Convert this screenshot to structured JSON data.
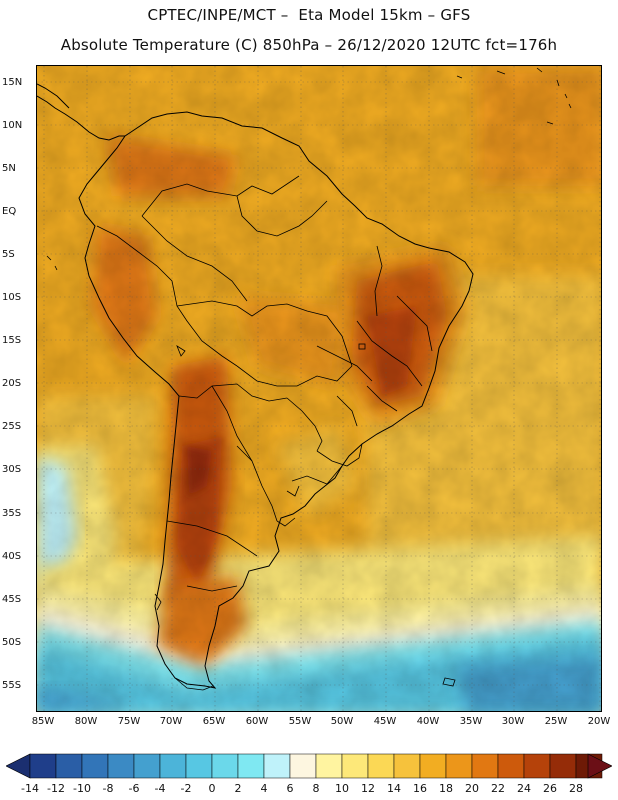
{
  "title": {
    "line1": "CPTEC/INPE/MCT –  Eta Model 15km – GFS",
    "line2": "Absolute Temperature (C) 850hPa – 26/12/2020 12UTC fct=176h"
  },
  "map": {
    "lat_labels": [
      "15N",
      "10N",
      "5N",
      "EQ",
      "5S",
      "10S",
      "15S",
      "20S",
      "25S",
      "30S",
      "35S",
      "40S",
      "45S",
      "50S",
      "55S"
    ],
    "lon_labels": [
      "85W",
      "80W",
      "75W",
      "70W",
      "65W",
      "60W",
      "55W",
      "50W",
      "45W",
      "40W",
      "35W",
      "30W",
      "25W",
      "20W"
    ],
    "gridlines": "dotted"
  },
  "colorbar": {
    "labels": [
      "-14",
      "-12",
      "-10",
      "-8",
      "-6",
      "-4",
      "-2",
      "0",
      "2",
      "4",
      "6",
      "8",
      "10",
      "12",
      "14",
      "16",
      "18",
      "20",
      "22",
      "24",
      "26",
      "28"
    ],
    "colors": [
      "#1f3e8a",
      "#2a5ea6",
      "#3275b8",
      "#3b8ac4",
      "#44a0cf",
      "#4cb4d9",
      "#57c7e3",
      "#6bd8ea",
      "#7fe8f2",
      "#bff2fa",
      "#fdf6e0",
      "#fff4a0",
      "#fde879",
      "#fbd855",
      "#f6c23c",
      "#f2ad22",
      "#ec961a",
      "#e17812",
      "#cd5a0c",
      "#b5420a",
      "#952c08",
      "#6e1a06"
    ],
    "left_arrow_color": "#1b2f70",
    "right_arrow_color": "#6b0f16"
  }
}
